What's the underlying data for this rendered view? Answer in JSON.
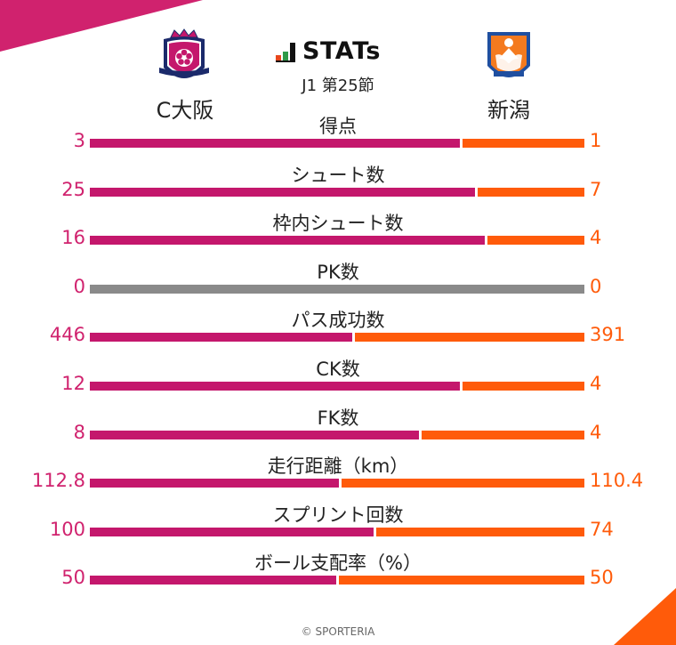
{
  "header": {
    "brand": "STATs",
    "round": "J1 第25節",
    "home_team": "C大阪",
    "away_team": "新潟"
  },
  "colors": {
    "home": "#c4176c",
    "away": "#ff5b0a",
    "home_text": "#d0226e",
    "neutral": "#8a8a8a"
  },
  "stats": [
    {
      "label": "得点",
      "home": "3",
      "away": "1",
      "home_share": 0.75
    },
    {
      "label": "シュート数",
      "home": "25",
      "away": "7",
      "home_share": 0.78
    },
    {
      "label": "枠内シュート数",
      "home": "16",
      "away": "4",
      "home_share": 0.8
    },
    {
      "label": "PK数",
      "home": "0",
      "away": "0",
      "home_share": null
    },
    {
      "label": "パス成功数",
      "home": "446",
      "away": "391",
      "home_share": 0.533
    },
    {
      "label": "CK数",
      "home": "12",
      "away": "4",
      "home_share": 0.75
    },
    {
      "label": "FK数",
      "home": "8",
      "away": "4",
      "home_share": 0.667
    },
    {
      "label": "走行距離（km）",
      "home": "112.8",
      "away": "110.4",
      "home_share": 0.505
    },
    {
      "label": "スプリント回数",
      "home": "100",
      "away": "74",
      "home_share": 0.575
    },
    {
      "label": "ボール支配率（%）",
      "home": "50",
      "away": "50",
      "home_share": 0.5
    }
  ],
  "footer": {
    "credit": "© SPORTERIA"
  },
  "icons": {
    "home_logo": "cerezo-osaka-crest-icon",
    "away_logo": "albirex-niigata-crest-icon",
    "brand_logo": "stats-bars-icon"
  }
}
